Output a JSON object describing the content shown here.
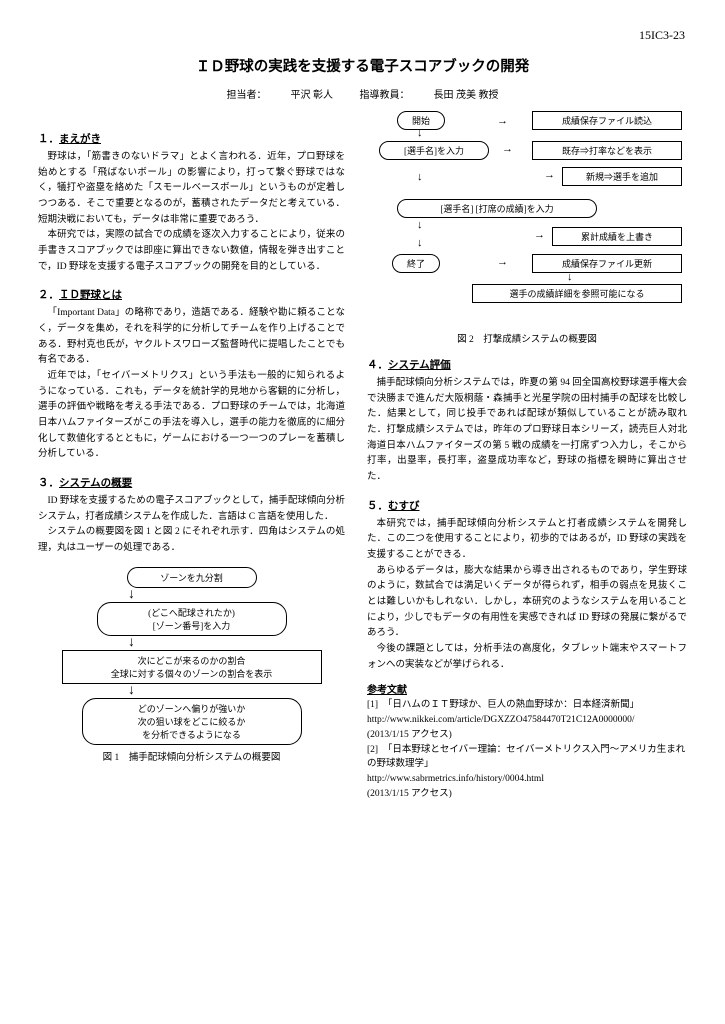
{
  "doc_id": "15IC3-23",
  "title": "ＩＤ野球の実践を支援する電子スコアブックの開発",
  "author_label": "担当者：",
  "author_name": "平沢 彰人",
  "advisor_label": "指導教員：",
  "advisor_name": "長田 茂美 教授",
  "s1_head": "１．まえがき",
  "s1_p1": "野球は，「筋書きのないドラマ」とよく言われる．近年，プロ野球を始めとする「飛ばないボール」の影響により，打って繋ぐ野球ではなく，犠打や盗塁を絡めた「スモールベースボール」というものが定着しつつある．そこで重要となるのが，蓄積されたデータだと考えている．短期決戦においても，データは非常に重要であろう．",
  "s1_p2": "本研究では，実際の試合での成績を逐次入力することにより，従来の手書きスコアブックでは即座に算出できない数値，情報を弾き出すことで，ID 野球を支援する電子スコアブックの開発を目的としている．",
  "s2_head": "２．ＩＤ野球とは",
  "s2_p1": "「Important Data」の略称であり，造語である．経験や勘に頼ることなく，データを集め，それを科学的に分析してチームを作り上げることである．野村克也氏が，ヤクルトスワローズ監督時代に提唱したことでも有名である．",
  "s2_p2": "近年では，「セイバーメトリクス」という手法も一般的に知られるようになっている．これも，データを統計学的見地から客観的に分析し，選手の評価や戦略を考える手法である．プロ野球のチームでは，北海道日本ハムファイターズがこの手法を導入し，選手の能力を徹底的に細分化して数値化するとともに，ゲームにおける一つ一つのプレーを蓄積し分析している．",
  "s3_head": "３．システムの概要",
  "s3_p1": "ID 野球を支援するための電子スコアブックとして，捕手配球傾向分析システム，打者成績システムを作成した．言語は C 言語を使用した．",
  "s3_p2": "システムの概要図を図 1 と図 2 にそれぞれ示す．四角はシステムの処理，丸はユーザーの処理である．",
  "flow1": {
    "n1": "ゾーンを九分割",
    "n2a": "(どこへ配球されたか)",
    "n2b": "[ゾーン番号]を入力",
    "n3a": "次にどこが来るのかの割合",
    "n3b": "全球に対する個々のゾーンの割合を表示",
    "n4a": "どのゾーンへ偏りが強いか",
    "n4b": "次の狙い球をどこに絞るか",
    "n4c": "を分析できるようになる"
  },
  "fig1_cap": "図 1　捕手配球傾向分析システムの概要図",
  "flow2": {
    "start": "開始",
    "r1": "成績保存ファイル読込",
    "n2": "[選手名]を入力",
    "r2": "既存⇒打率などを表示",
    "r3": "新規⇒選手を追加",
    "n3": "[選手名] [打席の成績]を入力",
    "r4": "累計成績を上書き",
    "end": "終了",
    "r5": "成績保存ファイル更新",
    "r6": "選手の成績詳細を参照可能になる"
  },
  "fig2_cap": "図 2　打撃成績システムの概要図",
  "s4_head": "４．システム評価",
  "s4_p1": "捕手配球傾向分析システムでは，昨夏の第 94 回全国高校野球選手権大会で決勝まで進んだ大阪桐蔭・森捕手と光星学院の田村捕手の配球を比較した．結果として，同じ投手であれば配球が類似していることが読み取れた．打撃成績システムでは，昨年のプロ野球日本シリーズ，読売巨人対北海道日本ハムファイターズの第 5 戦の成績を一打席ずつ入力し，そこから打率，出塁率，長打率，盗塁成功率など，野球の指標を瞬時に算出させた．",
  "s5_head": "５．むすび",
  "s5_p1": "本研究では，捕手配球傾向分析システムと打者成績システムを開発した．この二つを使用することにより，初歩的ではあるが，ID 野球の実践を支援することができる．",
  "s5_p2": "あらゆるデータは，膨大な結果から導き出されるものであり，学生野球のように，数試合では満足いくデータが得られず，相手の弱点を見抜くことは難しいかもしれない．しかし，本研究のようなシステムを用いることにより，少しでもデータの有用性を実感できれば ID 野球の発展に繋がるであろう．",
  "s5_p3": "今後の課題としては，分析手法の高度化，タブレット端末やスマートフォンへの実装などが挙げられる．",
  "ref_head": "参考文献",
  "ref1_a": "[1]　「日ハムのＩＴ野球か、巨人の熱血野球か：日本経済新聞」",
  "ref1_b": "http://www.nikkei.com/article/DGXZZO47584470T21C12A0000000/",
  "ref1_c": "(2013/1/15 アクセス)",
  "ref2_a": "[2]　「日本野球とセイバー理論：セイバーメトリクス入門～アメリカ生まれの野球数理学」",
  "ref2_b": "http://www.sabrmetrics.info/history/0004.html",
  "ref2_c": "(2013/1/15 アクセス)"
}
